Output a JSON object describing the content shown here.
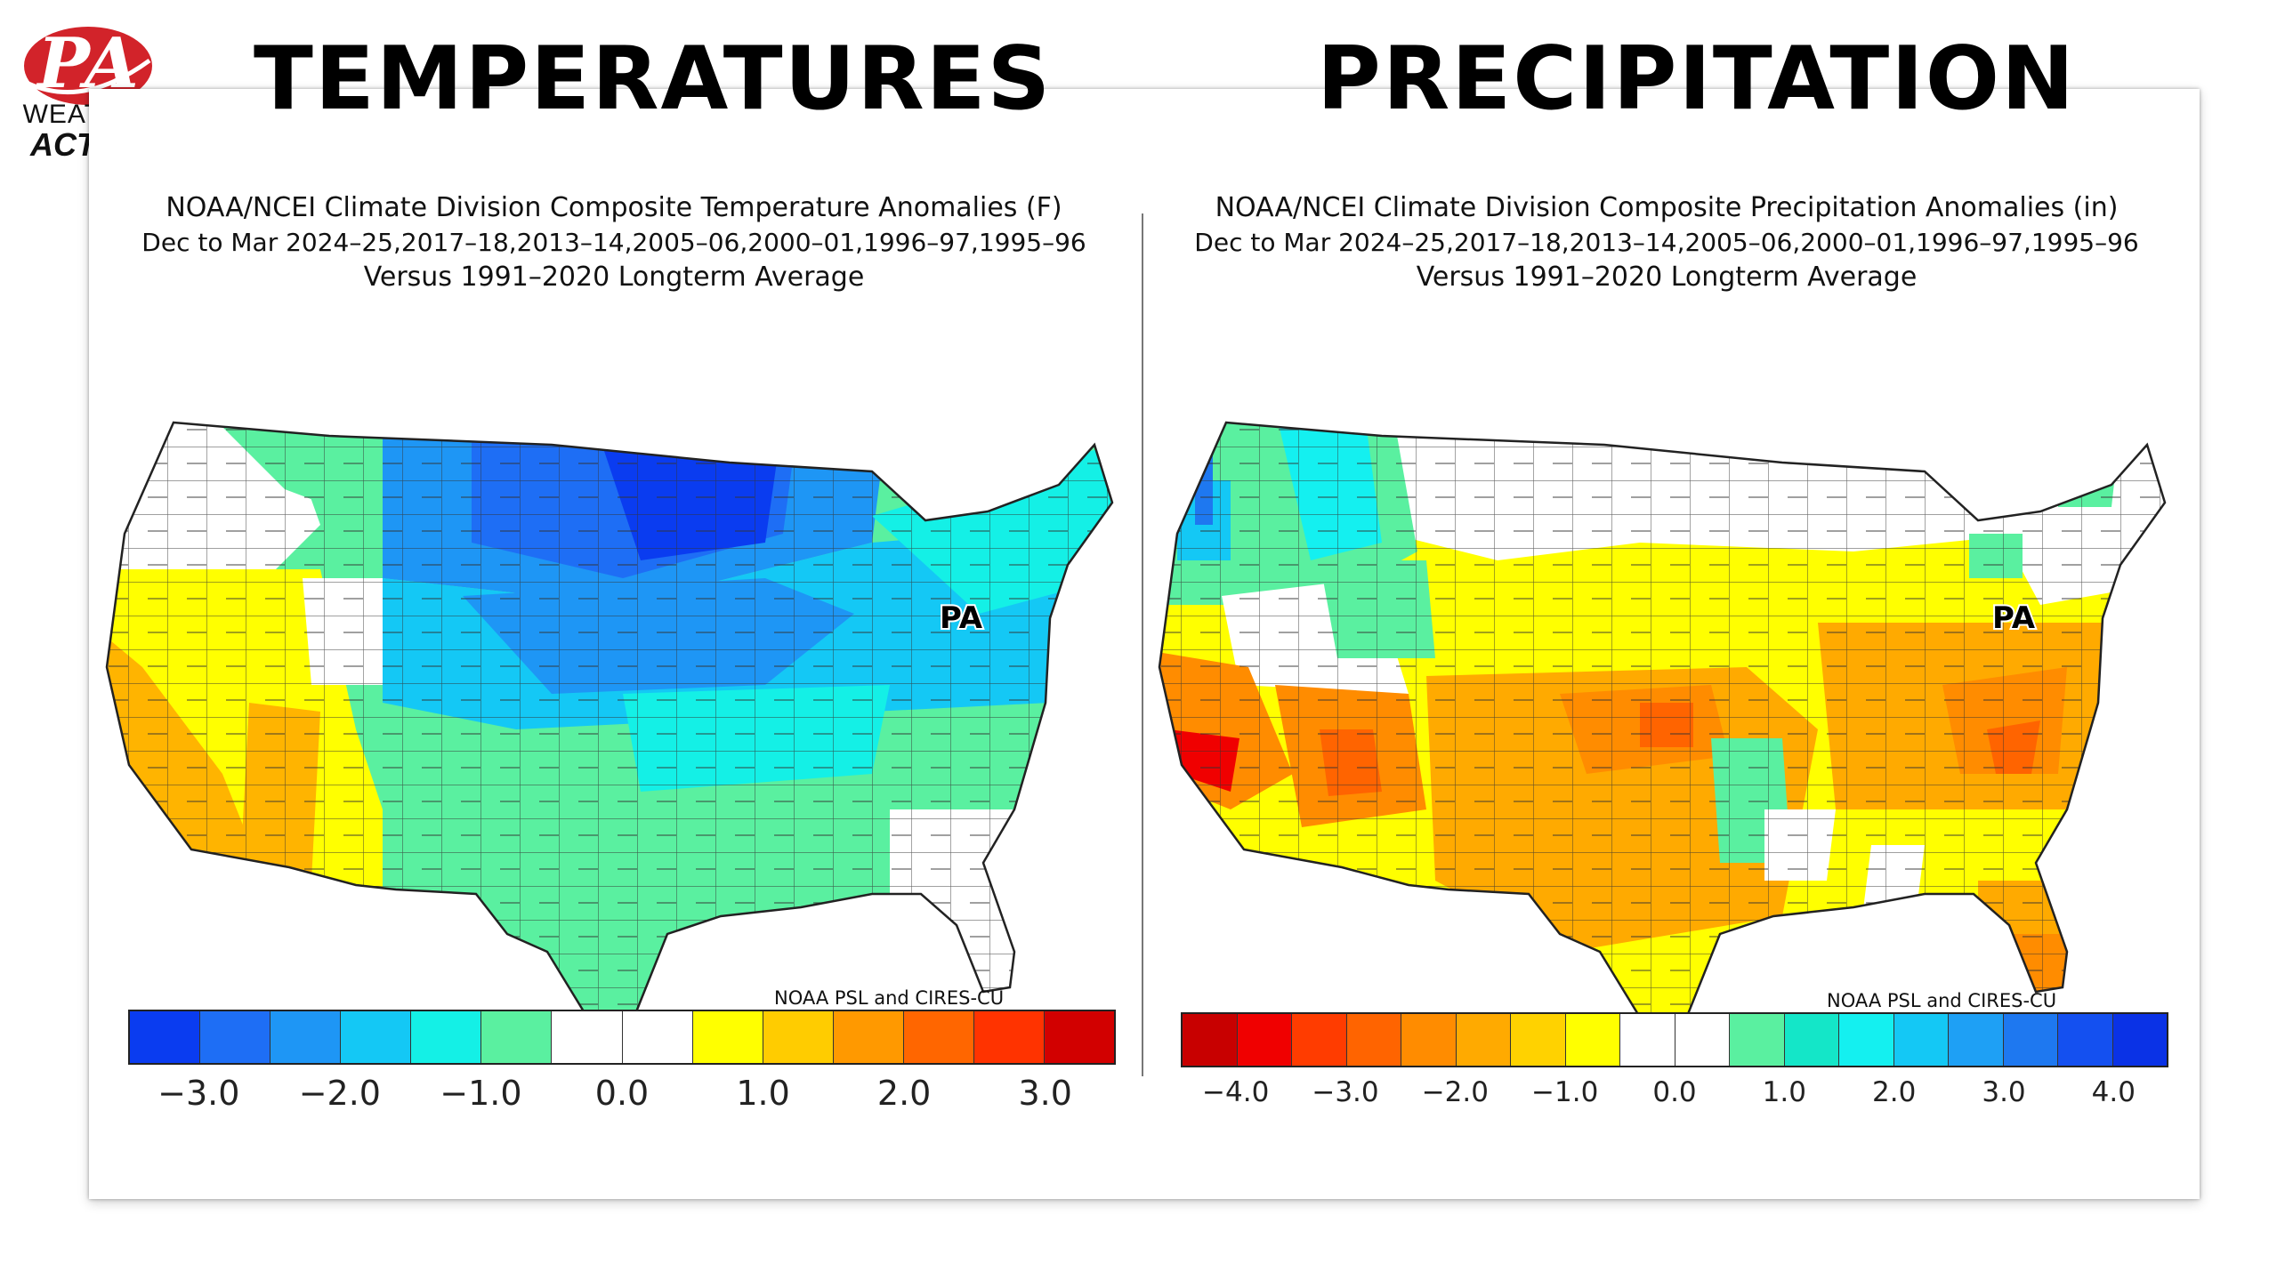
{
  "logo": {
    "mark": "PA",
    "line1": "WEATHER",
    "line2": "ACTION",
    "color": "#d2232a"
  },
  "headings": {
    "left": "TEMPERATURES",
    "right": "PRECIPITATION"
  },
  "temperature_map": {
    "title": "NOAA/NCEI Climate Division Composite Temperature Anomalies (F)",
    "subtitle": "Dec to Mar   2024–25,2017–18,2013–14,2005–06,2000–01,1996–97,1995–96",
    "baseline": "Versus 1991–2020 Longterm Average",
    "state_label": "PA",
    "credit": "NOAA PSL and CIRES-CU",
    "colorbar": {
      "colors": [
        "#0a3cf0",
        "#1e6ef5",
        "#1e96f5",
        "#14c8f5",
        "#14f0e6",
        "#5af0a0",
        "#ffffff",
        "#ffffff",
        "#ffff00",
        "#ffcc00",
        "#ff9900",
        "#ff6600",
        "#ff3300",
        "#d20000"
      ],
      "ticks": [
        "−3.0",
        "−2.0",
        "−1.0",
        "0.0",
        "1.0",
        "2.0",
        "3.0"
      ]
    }
  },
  "precipitation_map": {
    "title": "NOAA/NCEI Climate Division Composite Precipitation Anomalies (in)",
    "subtitle": "Dec to Mar   2024–25,2017–18,2013–14,2005–06,2000–01,1996–97,1995–96",
    "baseline": "Versus 1991–2020 Longterm Average",
    "state_label": "PA",
    "credit": "NOAA PSL and CIRES-CU",
    "colorbar": {
      "colors": [
        "#c80000",
        "#f00000",
        "#ff3c00",
        "#ff6400",
        "#ff8c00",
        "#ffaa00",
        "#ffd200",
        "#ffff00",
        "#ffffff",
        "#ffffff",
        "#5af0a0",
        "#14e6c8",
        "#14f0f0",
        "#14c8f5",
        "#1ea0f5",
        "#1e78f0",
        "#1450f0",
        "#0a32e6"
      ],
      "ticks": [
        "−4.0",
        "−3.0",
        "−2.0",
        "−1.0",
        "0.0",
        "1.0",
        "2.0",
        "3.0",
        "4.0"
      ]
    }
  }
}
